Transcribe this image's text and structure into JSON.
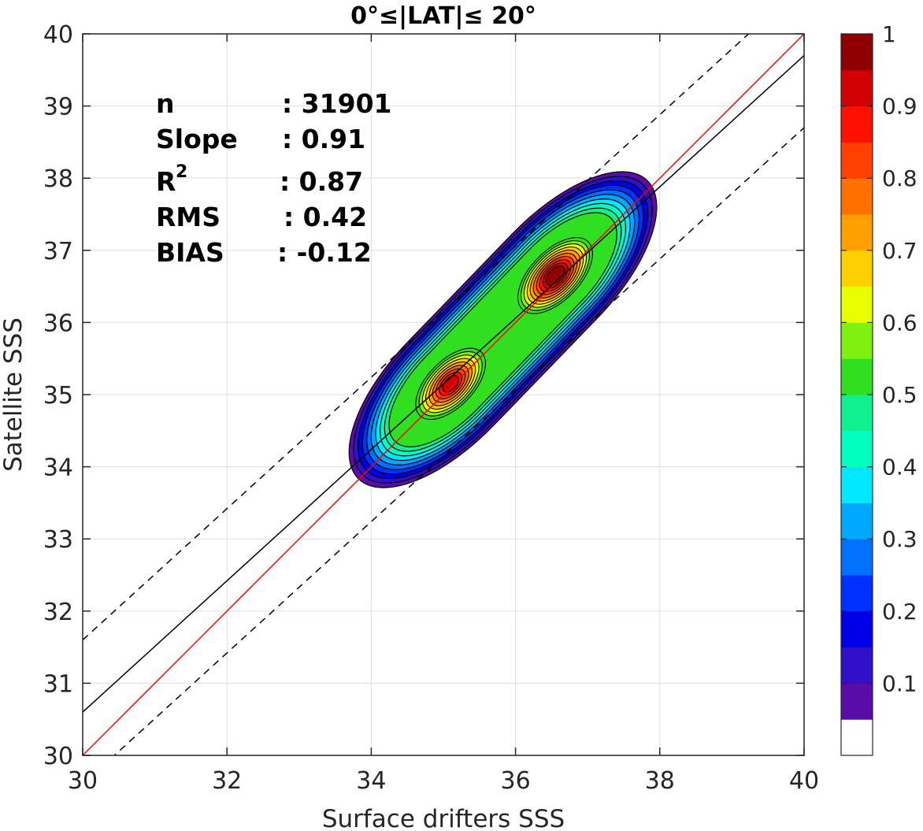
{
  "chart_data": {
    "type": "contour",
    "title": "0°≤|LAT|≤ 20°",
    "xlabel": "Surface drifters SSS",
    "ylabel": "Satellite SSS",
    "xlim": [
      30,
      40
    ],
    "ylim": [
      30,
      40
    ],
    "x_ticks": [
      "30",
      "32",
      "34",
      "36",
      "38",
      "40"
    ],
    "y_ticks": [
      "30",
      "31",
      "32",
      "33",
      "34",
      "35",
      "36",
      "37",
      "38",
      "39",
      "40"
    ],
    "grid": true,
    "stats": [
      {
        "label": "n",
        "value": ": 31901"
      },
      {
        "label": "Slope",
        "value": ": 0.91"
      },
      {
        "label": "R",
        "sup": "2",
        "value": ": 0.87"
      },
      {
        "label": "RMS",
        "value": ": 0.42"
      },
      {
        "label": "BIAS",
        "value": ": -0.12"
      }
    ],
    "lines": [
      {
        "kind": "one-to-one",
        "color": "#ff0000",
        "slope": 1.0,
        "intercept": 0.0
      },
      {
        "kind": "regression",
        "color": "#000000",
        "slope": 0.91,
        "intercept": 3.3
      },
      {
        "kind": "upper-bound",
        "color": "#000000",
        "dash": true,
        "slope": 0.91,
        "intercept": 4.3
      },
      {
        "kind": "lower-bound",
        "color": "#000000",
        "dash": true,
        "slope": 0.91,
        "intercept": 2.3
      }
    ],
    "density_peaks": [
      {
        "x": 35.1,
        "y": 35.15,
        "value": 0.92
      },
      {
        "x": 36.55,
        "y": 36.65,
        "value": 1.0
      }
    ],
    "colorbar": {
      "min": 0,
      "max": 1,
      "tick_labels": [
        "0.1",
        "0.2",
        "0.3",
        "0.4",
        "0.5",
        "0.6",
        "0.7",
        "0.8",
        "0.9",
        "1"
      ],
      "tick_values": [
        0.1,
        0.2,
        0.3,
        0.4,
        0.5,
        0.6,
        0.7,
        0.8,
        0.9,
        1.0
      ],
      "colors": [
        "#ffffff",
        "#5a0ca8",
        "#3010c8",
        "#0000e8",
        "#0030ff",
        "#0070ff",
        "#00a8ff",
        "#00e8ff",
        "#00ffc0",
        "#10f090",
        "#30e020",
        "#80f010",
        "#e8ff00",
        "#ffd000",
        "#ffa000",
        "#ff7000",
        "#ff4000",
        "#ff1000",
        "#d00000",
        "#900000"
      ]
    }
  }
}
